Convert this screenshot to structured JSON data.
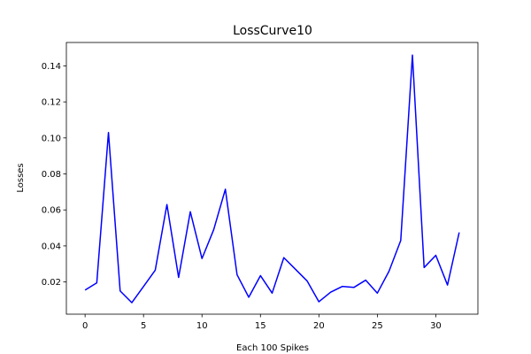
{
  "chart_data": {
    "type": "line",
    "title": "LossCurve10",
    "xlabel": "Each 100 Spikes",
    "ylabel": "Losses",
    "xlim": [
      -1.6,
      33.6
    ],
    "ylim": [
      0.0021,
      0.153
    ],
    "xticks": [
      0,
      5,
      10,
      15,
      20,
      25,
      30
    ],
    "xtick_labels": [
      "0",
      "5",
      "10",
      "15",
      "20",
      "25",
      "30"
    ],
    "yticks": [
      0.02,
      0.04,
      0.06,
      0.08,
      0.1,
      0.12,
      0.14
    ],
    "ytick_labels": [
      "0.02",
      "0.04",
      "0.06",
      "0.08",
      "0.10",
      "0.12",
      "0.14"
    ],
    "grid": false,
    "series": [
      {
        "color": "#0000ff",
        "x": [
          0,
          1,
          2,
          3,
          4,
          5,
          6,
          7,
          8,
          9,
          10,
          11,
          12,
          13,
          14,
          15,
          16,
          17,
          18,
          19,
          20,
          21,
          22,
          23,
          24,
          25,
          26,
          27,
          28,
          29,
          30,
          31,
          32
        ],
        "y": [
          0.0155,
          0.0195,
          0.103,
          0.015,
          0.0085,
          0.0175,
          0.0265,
          0.063,
          0.0225,
          0.059,
          0.033,
          0.049,
          0.0715,
          0.024,
          0.0115,
          0.0235,
          0.0138,
          0.0335,
          0.027,
          0.0205,
          0.009,
          0.0143,
          0.0175,
          0.017,
          0.021,
          0.0138,
          0.026,
          0.043,
          0.146,
          0.028,
          0.0348,
          0.0183,
          0.0475
        ]
      }
    ]
  }
}
